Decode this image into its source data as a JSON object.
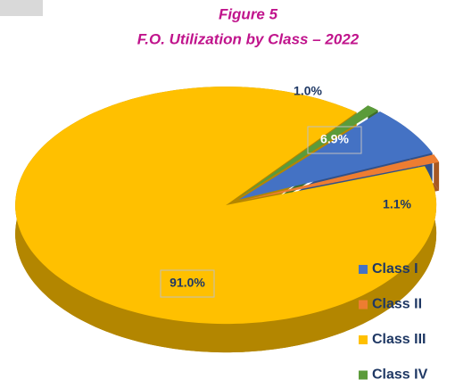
{
  "chart_data": {
    "type": "pie",
    "title": "Figure 5",
    "subtitle": "F.O. Utilization by Class – 2022",
    "categories": [
      "Class I",
      "Class II",
      "Class III",
      "Class IV"
    ],
    "values": [
      6.9,
      1.1,
      91.0,
      1.0
    ],
    "value_labels": [
      "6.9%",
      "1.1%",
      "91.0%",
      "1.0%"
    ],
    "colors": [
      "#4472c4",
      "#ed7d31",
      "#ffc000",
      "#5b9b3a"
    ],
    "legend": "right"
  }
}
